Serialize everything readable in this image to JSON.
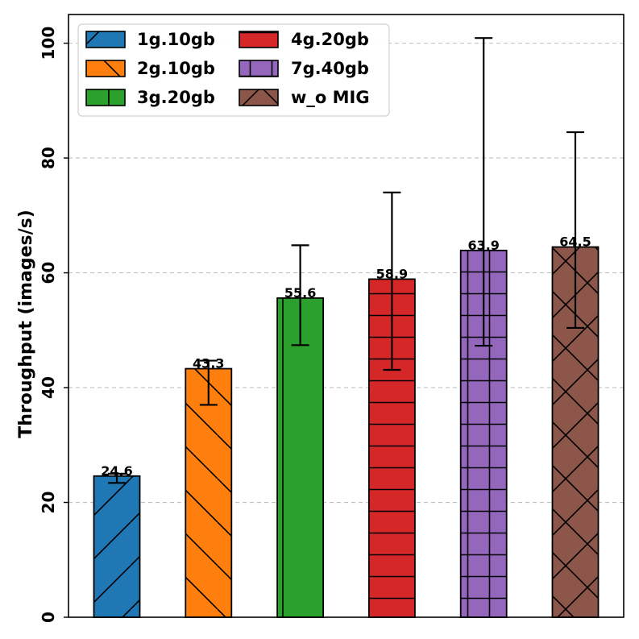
{
  "chart_data": {
    "type": "bar",
    "title": "",
    "xlabel": "",
    "ylabel": "Throughput (images/s)",
    "ylim": [
      0,
      105
    ],
    "yticks": [
      0,
      20,
      40,
      60,
      80,
      100
    ],
    "grid": "y-dashed",
    "legend_position": "top-left",
    "categories": [
      "1g.10gb",
      "2g.10gb",
      "3g.20gb",
      "4g.20gb",
      "7g.40gb",
      "w_o MIG"
    ],
    "values": [
      24.6,
      43.3,
      55.6,
      58.9,
      63.9,
      64.5
    ],
    "value_labels": [
      "24.6",
      "43.3",
      "55.6",
      "58.9",
      "63.9",
      "64.5"
    ],
    "error_low": [
      23.4,
      37.0,
      47.4,
      43.1,
      47.3,
      50.4
    ],
    "error_high": [
      25.0,
      44.7,
      64.8,
      74.0,
      100.9,
      84.5
    ],
    "colors": [
      "#1f77b4",
      "#ff7f0e",
      "#2ca02c",
      "#d62728",
      "#9467bd",
      "#8c564b"
    ],
    "hatches": [
      "/",
      "\\",
      "|",
      "-",
      "+",
      "x"
    ]
  }
}
